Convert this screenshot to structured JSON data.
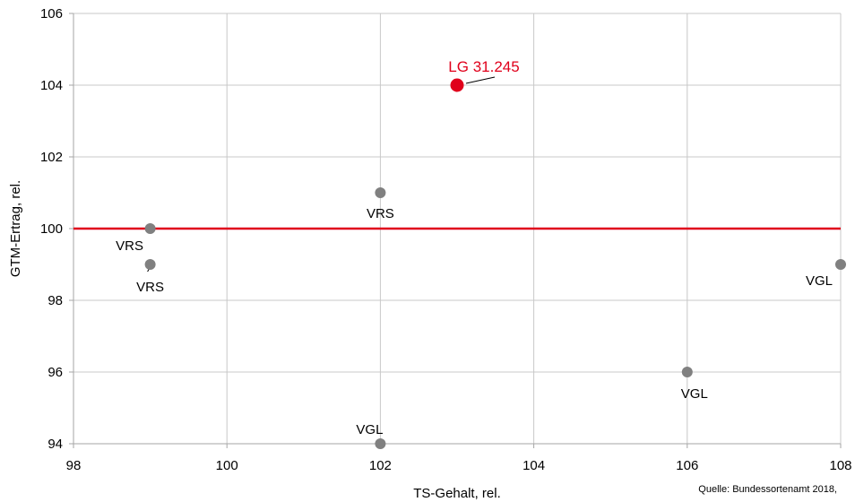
{
  "chart_data": {
    "type": "scatter",
    "title": "",
    "xlabel": "TS-Gehalt, rel.",
    "ylabel": "GTM-Ertrag, rel.",
    "xlim": [
      98,
      108
    ],
    "ylim": [
      94,
      106
    ],
    "xticks": [
      "98",
      "100",
      "102",
      "104",
      "106",
      "108"
    ],
    "yticks": [
      "94",
      "96",
      "98",
      "100",
      "102",
      "104",
      "106"
    ],
    "grid": true,
    "legend": "none",
    "reference_line": {
      "y": 100,
      "color": "#e0001b"
    },
    "colors": {
      "highlight": "#e0001b",
      "points": "#808080",
      "grid": "#c8c8c8",
      "axis": "#a6a6a6"
    },
    "points": [
      {
        "label": "LG 31.245",
        "x": 103,
        "y": 104,
        "highlight": true
      },
      {
        "label": "VRS",
        "x": 102,
        "y": 101
      },
      {
        "label": "VRS",
        "x": 99,
        "y": 100
      },
      {
        "label": "VRS",
        "x": 99,
        "y": 99
      },
      {
        "label": "VGL",
        "x": 108,
        "y": 99
      },
      {
        "label": "VGL",
        "x": 106,
        "y": 96
      },
      {
        "label": "VGL",
        "x": 102,
        "y": 94
      }
    ]
  },
  "source_note": "Quelle: Bundessortenamt 2018,"
}
